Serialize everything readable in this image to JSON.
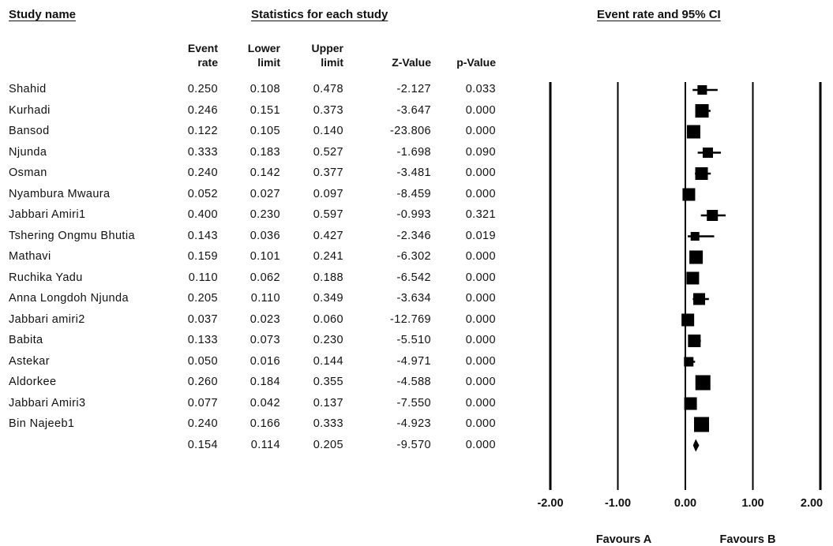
{
  "headers": {
    "study_name": "Study name",
    "statistics": "Statistics for each study",
    "ci_title": "Event rate and 95% CI"
  },
  "columns": [
    {
      "key": "event",
      "line1": "Event",
      "line2": "rate"
    },
    {
      "key": "lower",
      "line1": "Lower",
      "line2": "limit"
    },
    {
      "key": "upper",
      "line1": "Upper",
      "line2": "limit"
    },
    {
      "key": "z",
      "line1": "",
      "line2": "Z-Value"
    },
    {
      "key": "p",
      "line1": "",
      "line2": "p-Value"
    }
  ],
  "rows": [
    {
      "name": "Shahid",
      "event": "0.250",
      "lower": "0.108",
      "upper": "0.478",
      "z": "-2.127",
      "p": "0.033"
    },
    {
      "name": "Kurhadi",
      "event": "0.246",
      "lower": "0.151",
      "upper": "0.373",
      "z": "-3.647",
      "p": "0.000"
    },
    {
      "name": "Bansod",
      "event": "0.122",
      "lower": "0.105",
      "upper": "0.140",
      "z": "-23.806",
      "p": "0.000"
    },
    {
      "name": "Njunda",
      "event": "0.333",
      "lower": "0.183",
      "upper": "0.527",
      "z": "-1.698",
      "p": "0.090"
    },
    {
      "name": "Osman",
      "event": "0.240",
      "lower": "0.142",
      "upper": "0.377",
      "z": "-3.481",
      "p": "0.000"
    },
    {
      "name": "Nyambura Mwaura",
      "event": "0.052",
      "lower": "0.027",
      "upper": "0.097",
      "z": "-8.459",
      "p": "0.000"
    },
    {
      "name": "Jabbari Amiri1",
      "event": "0.400",
      "lower": "0.230",
      "upper": "0.597",
      "z": "-0.993",
      "p": "0.321"
    },
    {
      "name": "Tshering Ongmu Bhutia",
      "event": "0.143",
      "lower": "0.036",
      "upper": "0.427",
      "z": "-2.346",
      "p": "0.019"
    },
    {
      "name": "Mathavi",
      "event": "0.159",
      "lower": "0.101",
      "upper": "0.241",
      "z": "-6.302",
      "p": "0.000"
    },
    {
      "name": "Ruchika Yadu",
      "event": "0.110",
      "lower": "0.062",
      "upper": "0.188",
      "z": "-6.542",
      "p": "0.000"
    },
    {
      "name": "Anna Longdoh Njunda",
      "event": "0.205",
      "lower": "0.110",
      "upper": "0.349",
      "z": "-3.634",
      "p": "0.000"
    },
    {
      "name": "Jabbari amiri2",
      "event": "0.037",
      "lower": "0.023",
      "upper": "0.060",
      "z": "-12.769",
      "p": "0.000"
    },
    {
      "name": "Babita",
      "event": "0.133",
      "lower": "0.073",
      "upper": "0.230",
      "z": "-5.510",
      "p": "0.000"
    },
    {
      "name": "Astekar",
      "event": "0.050",
      "lower": "0.016",
      "upper": "0.144",
      "z": "-4.971",
      "p": "0.000"
    },
    {
      "name": "Aldorkee",
      "event": "0.260",
      "lower": "0.184",
      "upper": "0.355",
      "z": "-4.588",
      "p": "0.000"
    },
    {
      "name": "Jabbari Amiri3",
      "event": "0.077",
      "lower": "0.042",
      "upper": "0.137",
      "z": "-7.550",
      "p": "0.000"
    },
    {
      "name": "Bin Najeeb1",
      "event": "0.240",
      "lower": "0.166",
      "upper": "0.333",
      "z": "-4.923",
      "p": "0.000"
    }
  ],
  "summary": {
    "name": "",
    "event": "0.154",
    "lower": "0.114",
    "upper": "0.205",
    "z": "-9.570",
    "p": "0.000"
  },
  "chart_data": {
    "type": "forest",
    "title": "Event rate and 95% CI",
    "xlim": [
      -2.0,
      2.0
    ],
    "xticks": [
      "-2.00",
      "-1.00",
      "0.00",
      "1.00",
      "2.00"
    ],
    "favours_left": "Favours A",
    "favours_right": "Favours B",
    "marker_weights": [
      0.6,
      0.85,
      0.85,
      0.65,
      0.8,
      0.8,
      0.7,
      0.55,
      0.85,
      0.8,
      0.75,
      0.8,
      0.8,
      0.6,
      0.95,
      0.8,
      0.95
    ],
    "colors": {
      "mark": "#000000",
      "axis": "#000000"
    }
  }
}
